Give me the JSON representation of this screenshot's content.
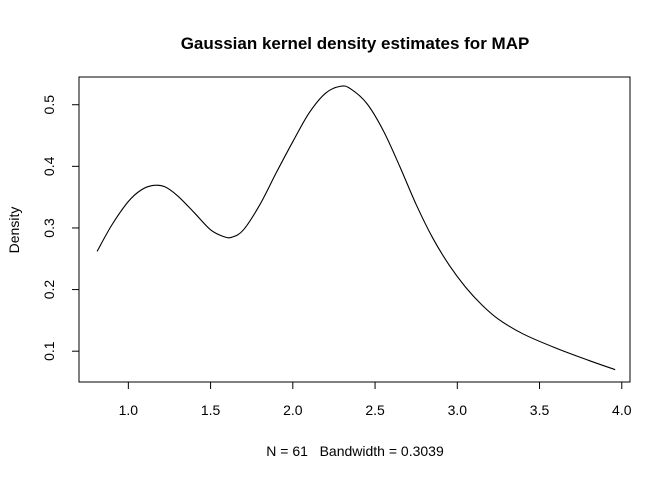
{
  "chart_data": {
    "type": "line",
    "title": "Gaussian kernel density estimates for MAP",
    "xlabel": "N = 61   Bandwidth = 0.3039",
    "ylabel": "Density",
    "xlim": [
      0.7,
      4.05
    ],
    "ylim": [
      0.05,
      0.545
    ],
    "x_ticks": [
      "1.0",
      "1.5",
      "2.0",
      "2.5",
      "3.0",
      "3.5",
      "4.0"
    ],
    "y_ticks": [
      "0.1",
      "0.2",
      "0.3",
      "0.4",
      "0.5"
    ],
    "grid": false,
    "series": [
      {
        "color": "#000000",
        "x": [
          0.81,
          0.9,
          1.0,
          1.08,
          1.15,
          1.22,
          1.3,
          1.4,
          1.5,
          1.58,
          1.63,
          1.7,
          1.8,
          1.9,
          2.0,
          2.1,
          2.2,
          2.29,
          2.35,
          2.45,
          2.55,
          2.65,
          2.75,
          2.85,
          2.95,
          3.05,
          3.15,
          3.25,
          3.4,
          3.6,
          3.8,
          3.96
        ],
        "y": [
          0.262,
          0.305,
          0.343,
          0.362,
          0.369,
          0.367,
          0.352,
          0.325,
          0.297,
          0.286,
          0.285,
          0.297,
          0.338,
          0.39,
          0.44,
          0.487,
          0.519,
          0.53,
          0.526,
          0.502,
          0.458,
          0.4,
          0.338,
          0.284,
          0.24,
          0.204,
          0.175,
          0.152,
          0.128,
          0.105,
          0.085,
          0.07
        ]
      }
    ]
  }
}
